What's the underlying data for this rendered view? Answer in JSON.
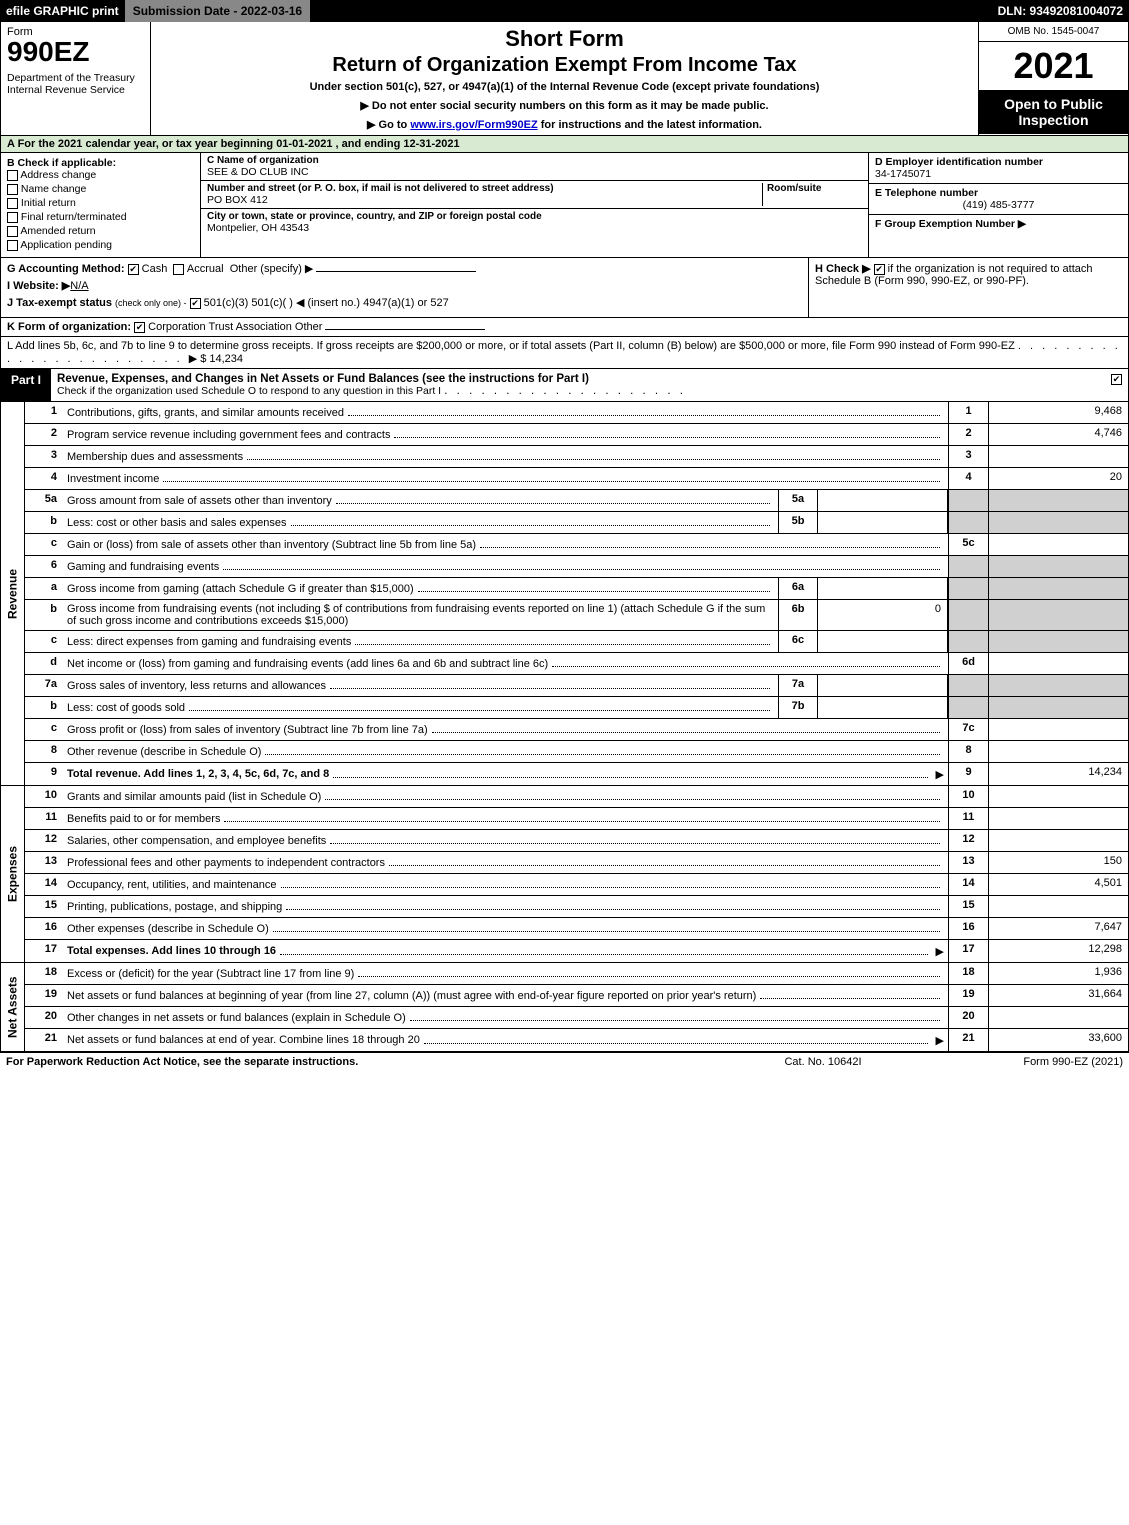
{
  "topbar": {
    "efile": "efile GRAPHIC print",
    "subdate_label": "Submission Date - 2022-03-16",
    "dln": "DLN: 93492081004072"
  },
  "header": {
    "form_label": "Form",
    "form_no": "990EZ",
    "dept": "Department of the Treasury\nInternal Revenue Service",
    "short": "Short Form",
    "title": "Return of Organization Exempt From Income Tax",
    "subtitle": "Under section 501(c), 527, or 4947(a)(1) of the Internal Revenue Code (except private foundations)",
    "warn": "▶ Do not enter social security numbers on this form as it may be made public.",
    "goto_pre": "▶ Go to ",
    "goto_link": "www.irs.gov/Form990EZ",
    "goto_post": " for instructions and the latest information.",
    "omb": "OMB No. 1545-0047",
    "year": "2021",
    "open_to": "Open to Public Inspection"
  },
  "lineA": "A  For the 2021 calendar year, or tax year beginning 01-01-2021 , and ending 12-31-2021",
  "sectionB": {
    "label": "B  Check if applicable:",
    "items": [
      "Address change",
      "Name change",
      "Initial return",
      "Final return/terminated",
      "Amended return",
      "Application pending"
    ]
  },
  "sectionC": {
    "name_label": "C Name of organization",
    "name": "SEE & DO CLUB INC",
    "addr_label": "Number and street (or P. O. box, if mail is not delivered to street address)",
    "room_label": "Room/suite",
    "addr": "PO BOX 412",
    "city_label": "City or town, state or province, country, and ZIP or foreign postal code",
    "city": "Montpelier, OH  43543"
  },
  "sectionD": {
    "d_label": "D Employer identification number",
    "ein": "34-1745071",
    "e_label": "E Telephone number",
    "phone": "(419) 485-3777",
    "f_label": "F Group Exemption Number  ▶"
  },
  "lineG": {
    "label": "G Accounting Method:",
    "cash": "Cash",
    "accrual": "Accrual",
    "other": "Other (specify) ▶"
  },
  "lineH": {
    "label": "H  Check ▶",
    "text": "if the organization is not required to attach Schedule B (Form 990, 990-EZ, or 990-PF)."
  },
  "lineI": {
    "label": "I Website: ▶",
    "value": "N/A"
  },
  "lineJ": {
    "label": "J Tax-exempt status",
    "sub": "(check only one) -",
    "opts": "501(c)(3)   501(c)(  ) ◀ (insert no.)   4947(a)(1) or   527"
  },
  "lineK": {
    "label": "K Form of organization:",
    "opts": "Corporation    Trust    Association    Other"
  },
  "lineL": {
    "text": "L Add lines 5b, 6c, and 7b to line 9 to determine gross receipts. If gross receipts are $200,000 or more, or if total assets (Part II, column (B) below) are $500,000 or more, file Form 990 instead of Form 990-EZ",
    "amount": "▶ $ 14,234"
  },
  "part1": {
    "tab": "Part I",
    "title": "Revenue, Expenses, and Changes in Net Assets or Fund Balances (see the instructions for Part I)",
    "check_text": "Check if the organization used Schedule O to respond to any question in this Part I"
  },
  "sections": [
    {
      "side": "Revenue",
      "rows": [
        {
          "ln": "1",
          "desc": "Contributions, gifts, grants, and similar amounts received",
          "num": "1",
          "val": "9,468"
        },
        {
          "ln": "2",
          "desc": "Program service revenue including government fees and contracts",
          "num": "2",
          "val": "4,746"
        },
        {
          "ln": "3",
          "desc": "Membership dues and assessments",
          "num": "3",
          "val": ""
        },
        {
          "ln": "4",
          "desc": "Investment income",
          "num": "4",
          "val": "20"
        },
        {
          "ln": "5a",
          "desc": "Gross amount from sale of assets other than inventory",
          "sub": "5a",
          "subval": "",
          "shade": true
        },
        {
          "ln": "b",
          "desc": "Less: cost or other basis and sales expenses",
          "sub": "5b",
          "subval": "",
          "shade": true
        },
        {
          "ln": "c",
          "desc": "Gain or (loss) from sale of assets other than inventory (Subtract line 5b from line 5a)",
          "num": "5c",
          "val": ""
        },
        {
          "ln": "6",
          "desc": "Gaming and fundraising events",
          "shade_all": true
        },
        {
          "ln": "a",
          "desc": "Gross income from gaming (attach Schedule G if greater than $15,000)",
          "sub": "6a",
          "subval": "",
          "shade": true
        },
        {
          "ln": "b",
          "desc": "Gross income from fundraising events (not including $                     of contributions from fundraising events reported on line 1) (attach Schedule G if the sum of such gross income and contributions exceeds $15,000)",
          "sub": "6b",
          "subval": "0",
          "shade": true
        },
        {
          "ln": "c",
          "desc": "Less: direct expenses from gaming and fundraising events",
          "sub": "6c",
          "subval": "",
          "shade": true
        },
        {
          "ln": "d",
          "desc": "Net income or (loss) from gaming and fundraising events (add lines 6a and 6b and subtract line 6c)",
          "num": "6d",
          "val": ""
        },
        {
          "ln": "7a",
          "desc": "Gross sales of inventory, less returns and allowances",
          "sub": "7a",
          "subval": "",
          "shade": true
        },
        {
          "ln": "b",
          "desc": "Less: cost of goods sold",
          "sub": "7b",
          "subval": "",
          "shade": true
        },
        {
          "ln": "c",
          "desc": "Gross profit or (loss) from sales of inventory (Subtract line 7b from line 7a)",
          "num": "7c",
          "val": ""
        },
        {
          "ln": "8",
          "desc": "Other revenue (describe in Schedule O)",
          "num": "8",
          "val": ""
        },
        {
          "ln": "9",
          "desc": "Total revenue. Add lines 1, 2, 3, 4, 5c, 6d, 7c, and 8",
          "num": "9",
          "val": "14,234",
          "bold": true,
          "arrow": true
        }
      ]
    },
    {
      "side": "Expenses",
      "rows": [
        {
          "ln": "10",
          "desc": "Grants and similar amounts paid (list in Schedule O)",
          "num": "10",
          "val": ""
        },
        {
          "ln": "11",
          "desc": "Benefits paid to or for members",
          "num": "11",
          "val": ""
        },
        {
          "ln": "12",
          "desc": "Salaries, other compensation, and employee benefits",
          "num": "12",
          "val": ""
        },
        {
          "ln": "13",
          "desc": "Professional fees and other payments to independent contractors",
          "num": "13",
          "val": "150"
        },
        {
          "ln": "14",
          "desc": "Occupancy, rent, utilities, and maintenance",
          "num": "14",
          "val": "4,501"
        },
        {
          "ln": "15",
          "desc": "Printing, publications, postage, and shipping",
          "num": "15",
          "val": ""
        },
        {
          "ln": "16",
          "desc": "Other expenses (describe in Schedule O)",
          "num": "16",
          "val": "7,647"
        },
        {
          "ln": "17",
          "desc": "Total expenses. Add lines 10 through 16",
          "num": "17",
          "val": "12,298",
          "bold": true,
          "arrow": true
        }
      ]
    },
    {
      "side": "Net Assets",
      "rows": [
        {
          "ln": "18",
          "desc": "Excess or (deficit) for the year (Subtract line 17 from line 9)",
          "num": "18",
          "val": "1,936"
        },
        {
          "ln": "19",
          "desc": "Net assets or fund balances at beginning of year (from line 27, column (A)) (must agree with end-of-year figure reported on prior year's return)",
          "num": "19",
          "val": "31,664"
        },
        {
          "ln": "20",
          "desc": "Other changes in net assets or fund balances (explain in Schedule O)",
          "num": "20",
          "val": ""
        },
        {
          "ln": "21",
          "desc": "Net assets or fund balances at end of year. Combine lines 18 through 20",
          "num": "21",
          "val": "33,600",
          "arrow": true
        }
      ]
    }
  ],
  "footer": {
    "left": "For Paperwork Reduction Act Notice, see the separate instructions.",
    "mid": "Cat. No. 10642I",
    "right": "Form 990-EZ (2021)"
  },
  "colors": {
    "greenish": "#d9ead3",
    "shade": "#d0d0d0",
    "black": "#000000"
  }
}
